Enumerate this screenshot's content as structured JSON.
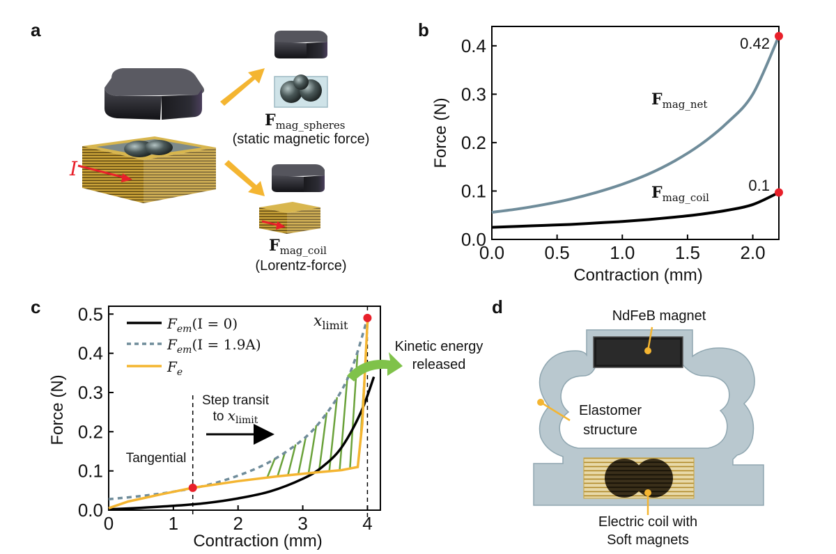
{
  "panel_a": {
    "letter": "a",
    "current_symbol": "I",
    "spheres_force": {
      "main": "F",
      "sub": "mag_spheres"
    },
    "spheres_caption": "(static magnetic force)",
    "coil_force": {
      "main": "F",
      "sub": "mag_coil"
    },
    "coil_caption": "(Lorentz-force)"
  },
  "panel_d": {
    "letter": "d",
    "magnet_label": "NdFeB magnet",
    "elastomer_label_1": "Elastomer",
    "elastomer_label_2": "structure",
    "coil_label_1": "Electric coil with",
    "coil_label_2": "Soft magnets"
  },
  "colors": {
    "net": "#6f8c9a",
    "coil": "#000000",
    "fe": "#f4b531",
    "hatch": "#6aa23a",
    "marker": "#e8202a",
    "arrow": "#f4b531"
  },
  "chart_data": [
    {
      "id": "b",
      "letter": "b",
      "type": "line",
      "xlabel": "Contraction (mm)",
      "ylabel": "Force (N)",
      "xlim": [
        0,
        2.2
      ],
      "ylim": [
        0,
        0.44
      ],
      "xticks": [
        "0.0",
        "0.5",
        "1.0",
        "1.5",
        "2.0"
      ],
      "xtick_values": [
        0,
        0.5,
        1.0,
        1.5,
        2.0
      ],
      "yticks": [
        "0.0",
        "0.1",
        "0.2",
        "0.3",
        "0.4"
      ],
      "ytick_values": [
        0,
        0.1,
        0.2,
        0.3,
        0.4
      ],
      "series": [
        {
          "name": "F_mag_net",
          "label_main": "F",
          "label_sub": "mag_net",
          "x": [
            0,
            0.2,
            0.4,
            0.6,
            0.8,
            1.0,
            1.2,
            1.4,
            1.6,
            1.8,
            2.0,
            2.2
          ],
          "y": [
            0.056,
            0.063,
            0.072,
            0.083,
            0.097,
            0.114,
            0.135,
            0.162,
            0.196,
            0.24,
            0.3,
            0.42
          ]
        },
        {
          "name": "F_mag_coil",
          "label_main": "F",
          "label_sub": "mag_coil",
          "x": [
            0,
            0.2,
            0.4,
            0.6,
            0.8,
            1.0,
            1.2,
            1.4,
            1.6,
            1.8,
            2.0,
            2.2
          ],
          "y": [
            0.025,
            0.027,
            0.029,
            0.031,
            0.034,
            0.037,
            0.041,
            0.046,
            0.052,
            0.06,
            0.072,
            0.097
          ]
        }
      ],
      "annotations": [
        {
          "text": "0.42",
          "x": 2.2,
          "y": 0.42
        },
        {
          "text": "0.1",
          "x": 2.2,
          "y": 0.097
        }
      ]
    },
    {
      "id": "c",
      "letter": "c",
      "type": "line",
      "xlabel": "Contraction (mm)",
      "ylabel": "Force (N)",
      "xlim": [
        0,
        4.2
      ],
      "ylim": [
        0,
        0.52
      ],
      "xticks": [
        "0",
        "1",
        "2",
        "3",
        "4"
      ],
      "xtick_values": [
        0,
        1,
        2,
        3,
        4
      ],
      "yticks": [
        "0.0",
        "0.1",
        "0.2",
        "0.3",
        "0.4",
        "0.5"
      ],
      "ytick_values": [
        0,
        0.1,
        0.2,
        0.3,
        0.4,
        0.5
      ],
      "legend": [
        {
          "text": "F_em(I = 0)",
          "main": "F",
          "sub": "em",
          "rest": "(I = 0)",
          "style": "solid-black"
        },
        {
          "text": "F_em(I = 1.9A)",
          "main": "F",
          "sub": "em",
          "rest": "(I = 1.9A)",
          "style": "dashed-gray"
        },
        {
          "text": "F_e",
          "main": "F",
          "sub": "e",
          "rest": "",
          "style": "solid-yellow"
        }
      ],
      "series": [
        {
          "name": "F_em(I=0)",
          "x": [
            0,
            0.5,
            1,
            1.5,
            2,
            2.5,
            3,
            3.3,
            3.6,
            3.9,
            4.1
          ],
          "y": [
            0.002,
            0.006,
            0.011,
            0.018,
            0.03,
            0.048,
            0.08,
            0.11,
            0.16,
            0.25,
            0.34
          ]
        },
        {
          "name": "F_em(I=1.9A)",
          "x": [
            0,
            0.5,
            1,
            1.5,
            2,
            2.5,
            3,
            3.3,
            3.6,
            3.8,
            4.0
          ],
          "y": [
            0.028,
            0.036,
            0.047,
            0.063,
            0.088,
            0.124,
            0.18,
            0.232,
            0.305,
            0.38,
            0.49
          ]
        },
        {
          "name": "F_e",
          "x": [
            0,
            0.3,
            0.8,
            1.3,
            2.0,
            2.6,
            3.2,
            3.6,
            3.85,
            3.92,
            4.0,
            4.0
          ],
          "y": [
            0.005,
            0.022,
            0.04,
            0.057,
            0.074,
            0.086,
            0.096,
            0.102,
            0.11,
            0.22,
            0.48,
            0.5
          ]
        }
      ],
      "points": [
        {
          "name": "tangential-point",
          "x": 1.3,
          "y": 0.057
        },
        {
          "name": "limit-point",
          "x": 4.0,
          "y": 0.49
        }
      ],
      "vlines": [
        1.3,
        4.0
      ],
      "annotations": {
        "tangential": "Tangential",
        "step_line1": "Step transit",
        "step_line2_pre": "to ",
        "step_line2_var": "x",
        "step_line2_sub": "limit",
        "xlimit_var": "x",
        "xlimit_sub": "limit",
        "kinetic_line1": "Kinetic energy",
        "kinetic_line2": "released"
      }
    }
  ]
}
